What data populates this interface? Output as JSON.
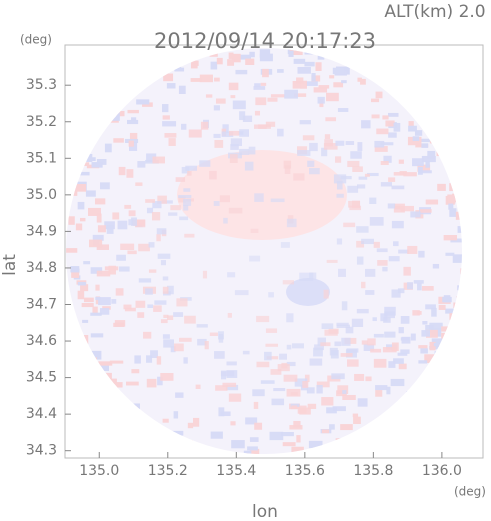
{
  "chart_data": {
    "type": "radar-image",
    "title": "2012/09/14 20:17:23",
    "annotation": "ALT(km) 2.0",
    "x_label": "lon",
    "y_label": "lat",
    "x_unit": "(deg)",
    "y_unit": "(deg)",
    "xlim": [
      134.9,
      136.12
    ],
    "ylim": [
      34.28,
      35.41
    ],
    "xticks": [
      {
        "value": 135.0,
        "label": "135.0"
      },
      135.2,
      135.4,
      135.6,
      135.8,
      {
        "value": 136.0,
        "label": "136.0"
      }
    ],
    "yticks": [
      34.3,
      34.4,
      34.5,
      34.6,
      34.7,
      34.8,
      34.9,
      {
        "value": 35.0,
        "label": "35.0"
      },
      35.1,
      35.2,
      35.3
    ]
  }
}
